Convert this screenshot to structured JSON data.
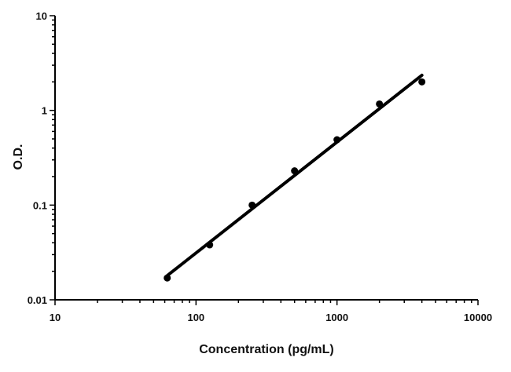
{
  "chart_data": {
    "type": "scatter",
    "title": "",
    "xlabel": "Concentration (pg/mL)",
    "ylabel": "O.D.",
    "x_scale": "log",
    "y_scale": "log",
    "xlim": [
      10,
      10000
    ],
    "ylim": [
      0.01,
      10
    ],
    "x_ticks": [
      10,
      100,
      1000,
      10000
    ],
    "x_tick_labels": [
      "10",
      "100",
      "1000",
      "10000"
    ],
    "y_ticks": [
      0.01,
      0.1,
      1,
      10
    ],
    "y_tick_labels": [
      "0.01",
      "0.1",
      "1",
      "10"
    ],
    "grid": false,
    "series": [
      {
        "points": [
          {
            "x": 62.5,
            "y": 0.017
          },
          {
            "x": 125,
            "y": 0.038
          },
          {
            "x": 250,
            "y": 0.1
          },
          {
            "x": 500,
            "y": 0.23
          },
          {
            "x": 1000,
            "y": 0.49
          },
          {
            "x": 2000,
            "y": 1.17
          },
          {
            "x": 4000,
            "y": 2.0
          }
        ]
      }
    ],
    "fit_line": {
      "x": [
        62.5,
        4000
      ],
      "y": [
        0.018,
        2.35
      ]
    },
    "colors": {
      "points": "#000000",
      "line": "#000000",
      "axes": "#000000"
    }
  }
}
